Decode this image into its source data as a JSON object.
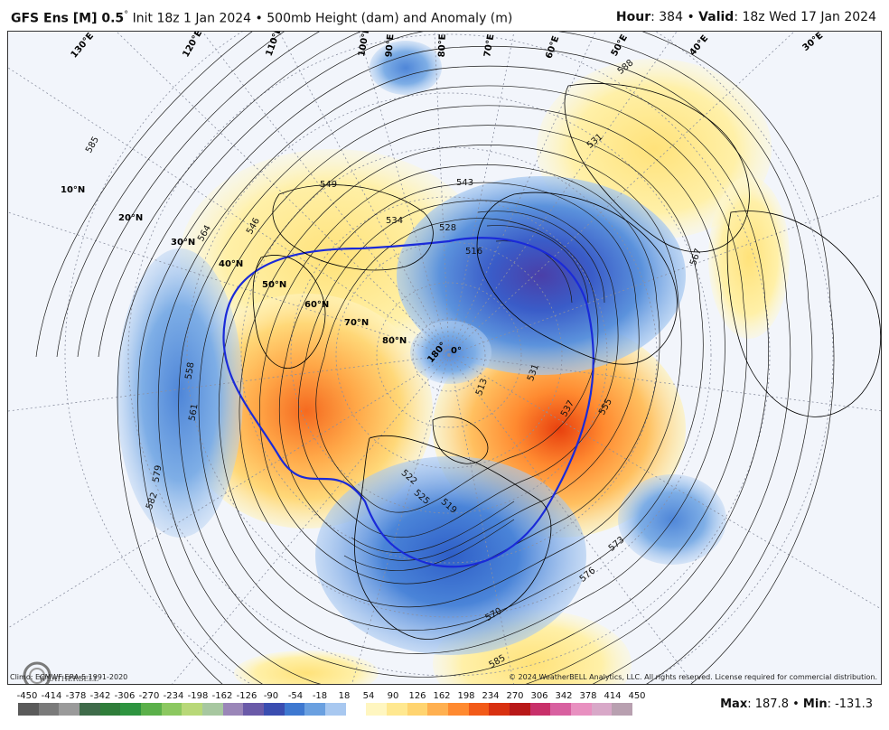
{
  "header": {
    "model": "GFS Ens [M] 0.5",
    "degree": "°",
    "init": "Init 18z 1 Jan 2024",
    "bullet": "•",
    "field": "500mb Height (dam) and Anomaly (m)",
    "hour_label": "Hour",
    "hour_value": ": 384",
    "valid_label": "Valid",
    "valid_value": ": 18z Wed 17 Jan 2024"
  },
  "lat_labels": [
    "10°N",
    "20°N",
    "30°N",
    "40°N",
    "50°N",
    "60°N",
    "70°N",
    "80°N"
  ],
  "lon_labels": [
    "130°E",
    "120°E",
    "110°E",
    "100°E",
    "90°E",
    "80°E",
    "70°E",
    "60°E",
    "50°E",
    "40°E",
    "30°E",
    "180°",
    "0°"
  ],
  "contour_labels": [
    "585",
    "549",
    "543",
    "534",
    "528",
    "516",
    "564",
    "546",
    "558",
    "561",
    "579",
    "582",
    "513",
    "531",
    "537",
    "555",
    "567",
    "588",
    "573",
    "576",
    "570",
    "522",
    "525",
    "519",
    "531",
    "585"
  ],
  "footer": {
    "climo": "Climo: ECMWF ERA-5 1991-2020",
    "copyright": "© 2024 WeatherBELL Analytics, LLC. All rights reserved. License required for commercial distribution."
  },
  "colorbar": {
    "ticks": [
      "-450",
      "-414",
      "-378",
      "-342",
      "-306",
      "-270",
      "-234",
      "-198",
      "-162",
      "-126",
      "-90",
      "-54",
      "-18",
      "18",
      "54",
      "90",
      "126",
      "162",
      "198",
      "234",
      "270",
      "306",
      "342",
      "378",
      "414",
      "450"
    ],
    "colors": [
      "#5a5a5a",
      "#7a7a7a",
      "#9a9a9a",
      "#3f6b4a",
      "#2f7d3a",
      "#2e9440",
      "#5bb04a",
      "#8cc860",
      "#b8d878",
      "#a7c7a0",
      "#9a86b8",
      "#6a5aa8",
      "#3a4db0",
      "#3e78d0",
      "#6aa0e0",
      "#a8c8f0",
      "#ffffff",
      "#fff6c0",
      "#ffe890",
      "#ffd470",
      "#ffb050",
      "#ff8a30",
      "#f25a18",
      "#d83010",
      "#b81818",
      "#c8306a",
      "#d860a0",
      "#e890c0",
      "#d8a8c8",
      "#b8a0b0"
    ]
  },
  "maxmin": {
    "max_label": "Max",
    "max_value": ": 187.8",
    "bullet": "•",
    "min_label": "Min",
    "min_value": ": -131.3"
  },
  "logo": "WEATHERBELL"
}
